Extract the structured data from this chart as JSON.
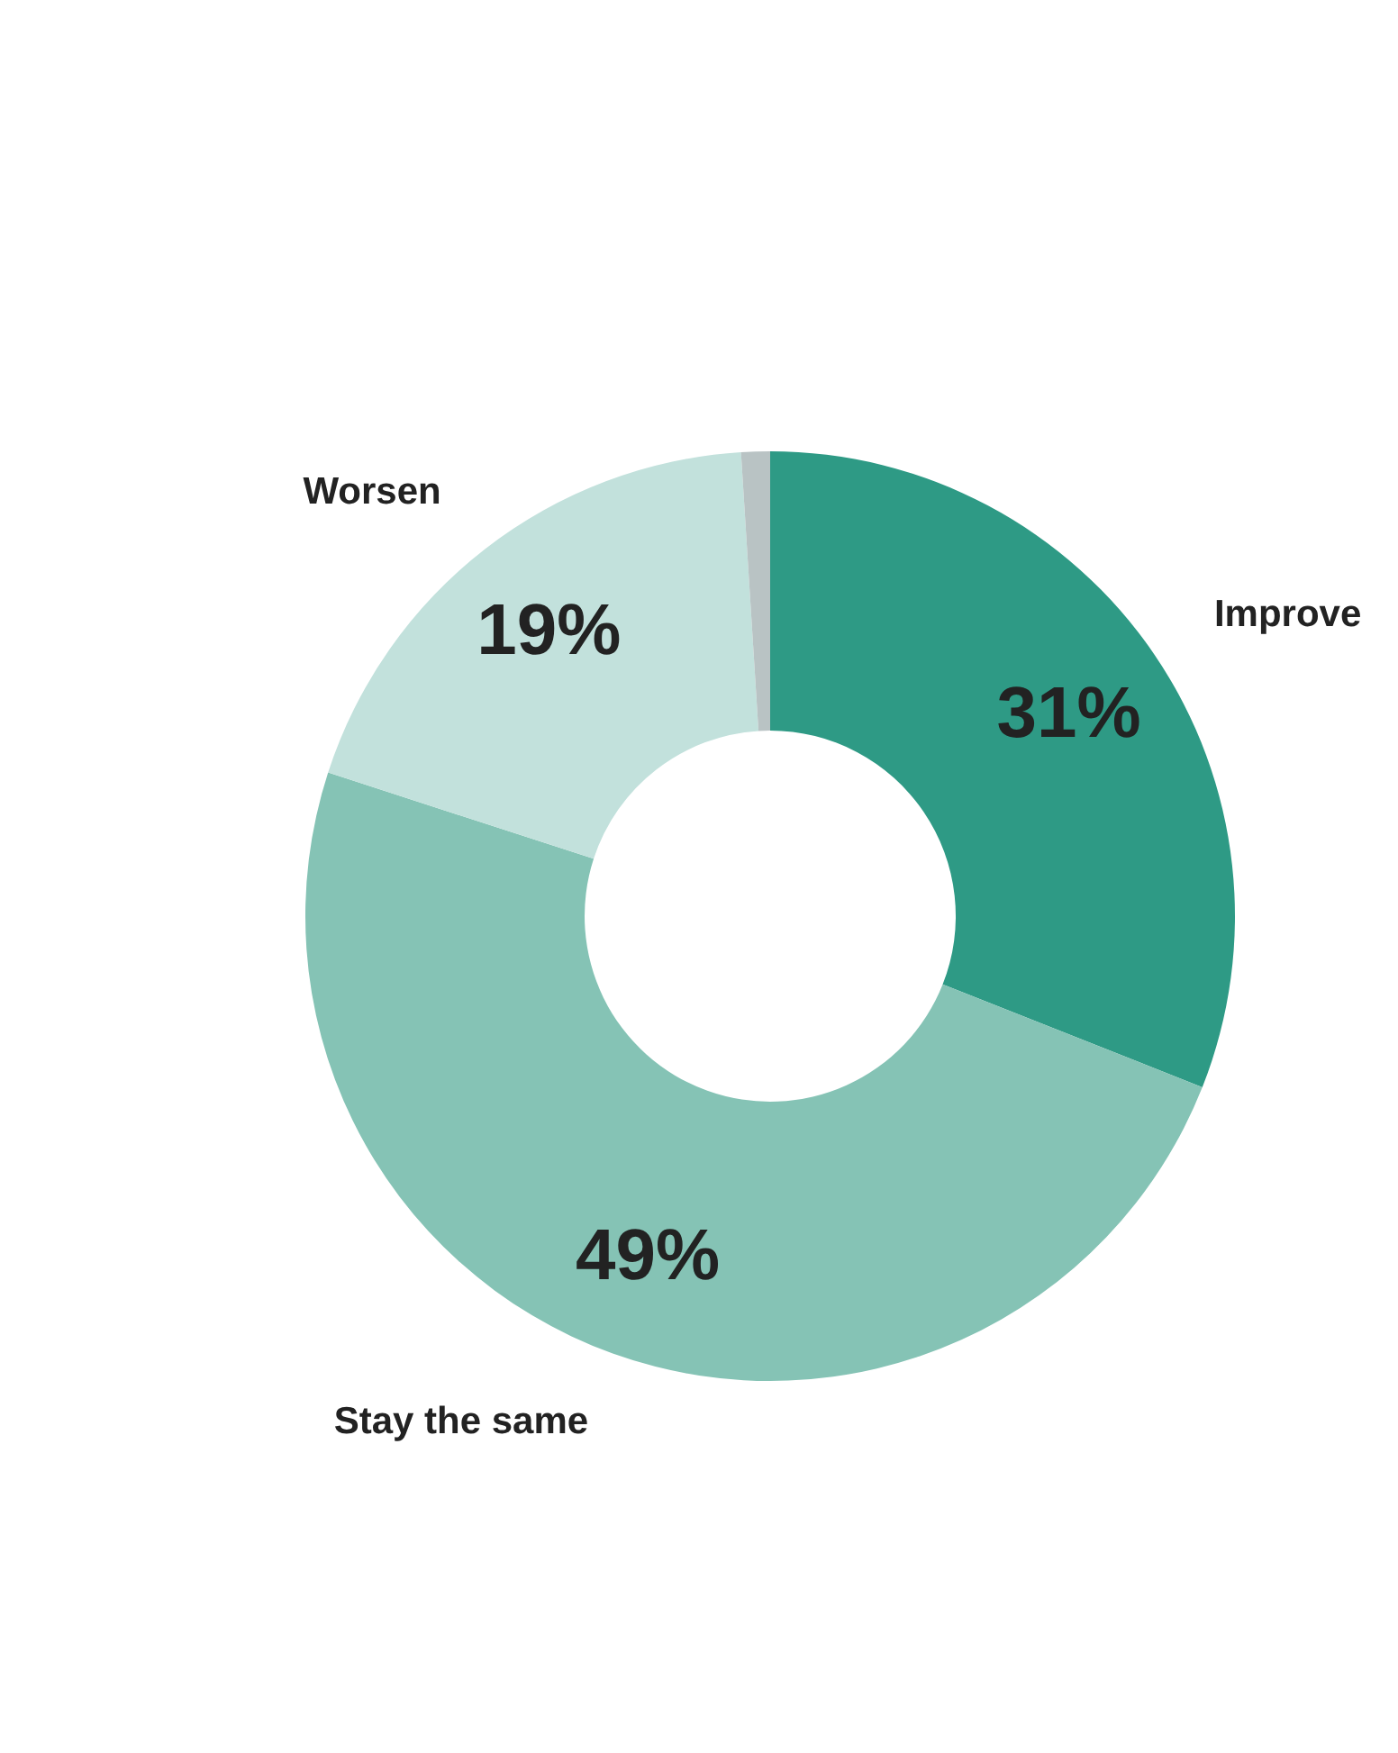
{
  "chart_data": {
    "type": "donut",
    "categories": [
      "Improve",
      "Stay the same",
      "Worsen",
      null
    ],
    "values": [
      31,
      49,
      19,
      1
    ],
    "colors": [
      "#2e9a85",
      "#85c3b5",
      "#c2e1dc",
      "#b9c3c4"
    ],
    "value_labels": [
      "31%",
      "49%",
      "19%",
      null
    ]
  }
}
